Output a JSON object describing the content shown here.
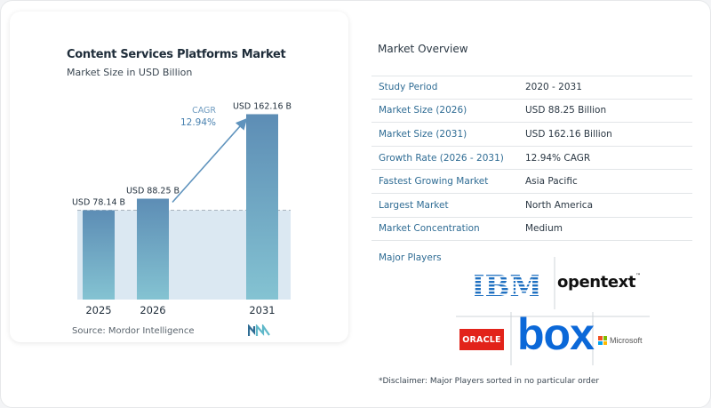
{
  "chart_data": {
    "type": "bar",
    "title": "Content Services Platforms Market",
    "subtitle": "Market Size in USD Billion",
    "categories": [
      "2025",
      "2026",
      "2031"
    ],
    "values": [
      78.14,
      88.25,
      162.16
    ],
    "data_labels": [
      "USD 78.14 B",
      "USD 88.25 B",
      "USD 162.16 B"
    ],
    "cagr_label": "CAGR",
    "cagr_value": "12.94%",
    "ylim": [
      0,
      170
    ],
    "grid": false,
    "colors": {
      "bar_top": "#5d8db5",
      "bar_bottom": "#84c3d2",
      "band": "#dbe8f2",
      "arrow": "#5f93bd",
      "dashed": "#a9b4bd"
    }
  },
  "source": "Source:  Mordor Intelligence",
  "overview": {
    "title": "Market Overview",
    "rows": [
      {
        "label": "Study Period",
        "value": "2020 - 2031"
      },
      {
        "label": "Market Size (2026)",
        "value": "USD 88.25 Billion"
      },
      {
        "label": "Market Size (2031)",
        "value": "USD 162.16 Billion"
      },
      {
        "label": "Growth Rate (2026 - 2031)",
        "value": "12.94% CAGR"
      },
      {
        "label": "Fastest Growing Market",
        "value": "Asia Pacific"
      },
      {
        "label": "Largest Market",
        "value": "North America"
      },
      {
        "label": "Market Concentration",
        "value": "Medium"
      }
    ]
  },
  "players": {
    "title": "Major Players",
    "logos": {
      "ibm": "IBM",
      "opentext": "opentext",
      "opentext_tm": "™",
      "oracle": "ORACLE",
      "box": "box",
      "microsoft": "Microsoft"
    },
    "ms_colors": [
      "#f25022",
      "#7fba00",
      "#00a4ef",
      "#ffb900"
    ],
    "disclaimer": "*Disclaimer: Major Players sorted in no particular order"
  }
}
